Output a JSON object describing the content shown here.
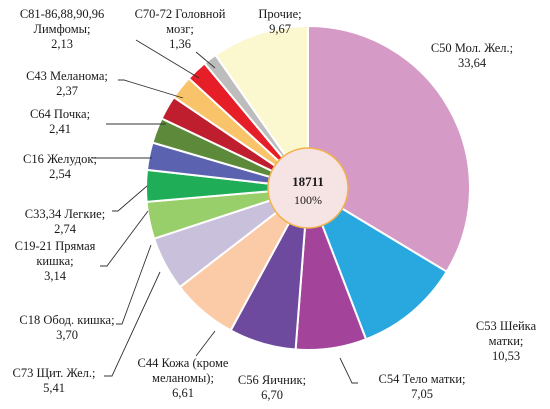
{
  "chart_data": {
    "type": "pie",
    "title": "",
    "center": {
      "total": "18711",
      "percent": "100%"
    },
    "slices": [
      {
        "label": [
          "C50 Мол. Жел.;",
          "33,64"
        ],
        "value": 33.64,
        "color": "#d69ac6"
      },
      {
        "label": [
          "C53 Шейка",
          "матки;",
          "10,53"
        ],
        "value": 10.53,
        "color": "#29a8e0"
      },
      {
        "label": [
          "C54 Тело матки;",
          "7,05"
        ],
        "value": 7.05,
        "color": "#a3449a"
      },
      {
        "label": [
          "C56 Яичник;",
          "6,70"
        ],
        "value": 6.7,
        "color": "#6e4a9e"
      },
      {
        "label": [
          "C44 Кожа (кроме",
          "меланомы);",
          "6,61"
        ],
        "value": 6.61,
        "color": "#fbcba8"
      },
      {
        "label": [
          "C73 Щит. Жел.;",
          "5,41"
        ],
        "value": 5.41,
        "color": "#c9c0dc"
      },
      {
        "label": [
          "C18 Обод. кишка;",
          "3,70"
        ],
        "value": 3.7,
        "color": "#99cf6a"
      },
      {
        "label": [
          "C19-21 Прямая",
          "кишка;",
          "3,14"
        ],
        "value": 3.14,
        "color": "#1fae57"
      },
      {
        "label": [
          "C33,34 Легкие;",
          "2,74"
        ],
        "value": 2.74,
        "color": "#5b62b0"
      },
      {
        "label": [
          "C16 Желудок;",
          "2,54"
        ],
        "value": 2.54,
        "color": "#5c8a3a"
      },
      {
        "label": [
          "C64 Почка;",
          "2,41"
        ],
        "value": 2.41,
        "color": "#bf1e2e"
      },
      {
        "label": [
          "C43 Меланома;",
          "2,37"
        ],
        "value": 2.37,
        "color": "#f9c36a"
      },
      {
        "label": [
          "C81-86,88,90,96",
          "Лимфомы;",
          "2,13"
        ],
        "value": 2.13,
        "color": "#e61e28"
      },
      {
        "label": [
          "C70-72 Головной",
          "мозг;",
          "1,36"
        ],
        "value": 1.36,
        "color": "#bdbdbd"
      },
      {
        "label": [
          "Прочие;",
          "9,67"
        ],
        "value": 9.67,
        "color": "#fbf7cf"
      }
    ]
  }
}
